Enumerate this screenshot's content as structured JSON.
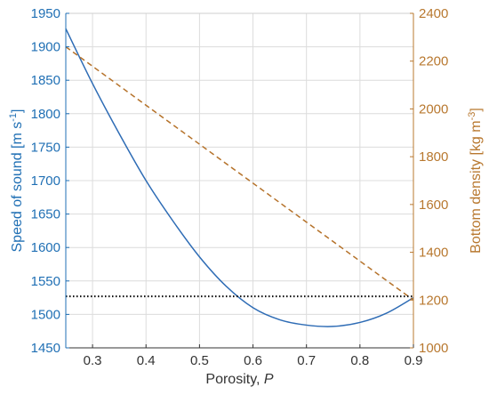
{
  "chart_data": {
    "type": "line",
    "xlabel_prefix": "Porosity, ",
    "xlabel_var": "P",
    "ylabel_left_main": "Speed of sound [m s",
    "ylabel_left_sup": "-1",
    "ylabel_left_end": "]",
    "ylabel_right_main": "Bottom density [kg m",
    "ylabel_right_sup": "-3",
    "ylabel_right_end": "]",
    "xlim": [
      0.25,
      0.9
    ],
    "ylim_left": [
      1450,
      1950
    ],
    "ylim_right": [
      1000,
      2400
    ],
    "xticks": [
      0.3,
      0.4,
      0.5,
      0.6,
      0.7,
      0.8,
      0.9
    ],
    "xtick_labels": [
      "0.3",
      "0.4",
      "0.5",
      "0.6",
      "0.7",
      "0.8",
      "0.9"
    ],
    "yticks_left": [
      1450,
      1500,
      1550,
      1600,
      1650,
      1700,
      1750,
      1800,
      1850,
      1900,
      1950
    ],
    "yticks_left_labels": [
      "1450",
      "1500",
      "1550",
      "1600",
      "1650",
      "1700",
      "1750",
      "1800",
      "1850",
      "1900",
      "1950"
    ],
    "yticks_right": [
      1000,
      1200,
      1400,
      1600,
      1800,
      2000,
      2200,
      2400
    ],
    "yticks_right_labels": [
      "1000",
      "1200",
      "1400",
      "1600",
      "1800",
      "2000",
      "2200",
      "2400"
    ],
    "grid": true,
    "series": [
      {
        "axis": "left",
        "style": "solid",
        "color": "#2e6cb5",
        "x": [
          0.25,
          0.3,
          0.35,
          0.4,
          0.45,
          0.5,
          0.55,
          0.6,
          0.65,
          0.7,
          0.75,
          0.8,
          0.85,
          0.9
        ],
        "y": [
          1927,
          1845,
          1770,
          1700,
          1640,
          1586,
          1542,
          1510,
          1492,
          1484,
          1482,
          1488,
          1502,
          1525
        ]
      },
      {
        "axis": "right",
        "style": "dashed",
        "color": "#b5722a",
        "x": [
          0.25,
          0.9
        ],
        "y": [
          2260,
          1200
        ]
      },
      {
        "axis": "left",
        "style": "dotted",
        "color": "#000000",
        "x": [
          0.25,
          0.9
        ],
        "y": [
          1527,
          1527
        ]
      }
    ],
    "colors": {
      "left_axis": "#1f6fb4",
      "right_axis": "#b8782f",
      "bottom_axis": "#333333"
    }
  }
}
